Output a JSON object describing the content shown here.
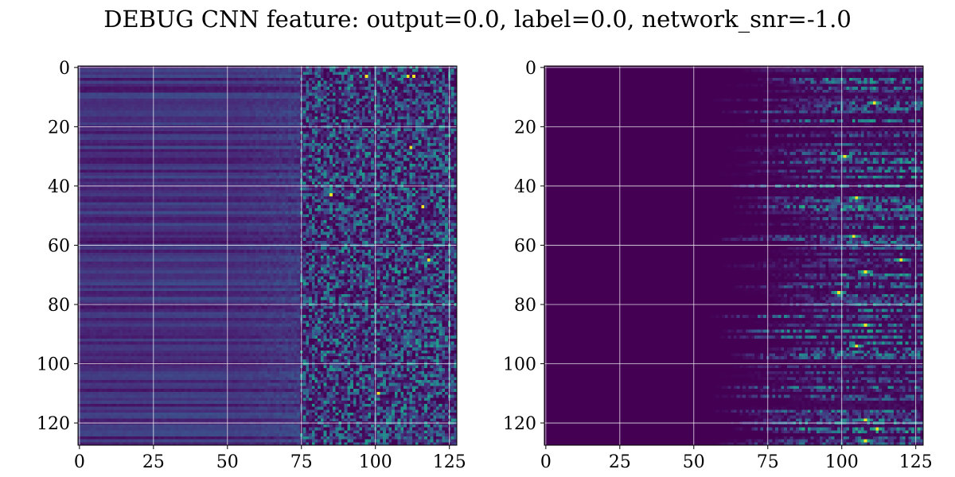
{
  "figure": {
    "title": "DEBUG CNN feature: output=0.0, label=0.0, network_snr=-1.0"
  },
  "chart_data": [
    {
      "type": "heatmap",
      "panel": "left",
      "rows": 128,
      "cols": 128,
      "xlim": [
        -0.5,
        127.5
      ],
      "ylim": [
        127.5,
        -0.5
      ],
      "xticks": [
        0,
        25,
        50,
        75,
        100,
        125
      ],
      "yticks": [
        0,
        20,
        40,
        60,
        80,
        100,
        120
      ],
      "xlabel": "",
      "ylabel": "",
      "grid": true,
      "colormap": "viridis",
      "description_values": {
        "baseline_cols_0_75": 0.22,
        "noise_cols_75_127": 0.3,
        "hot_spots": [
          [
            3,
            97
          ],
          [
            3,
            111
          ],
          [
            3,
            113
          ],
          [
            27,
            112
          ],
          [
            43,
            85
          ],
          [
            47,
            116
          ],
          [
            65,
            118
          ],
          [
            110,
            101
          ]
        ]
      }
    },
    {
      "type": "heatmap",
      "panel": "right",
      "rows": 128,
      "cols": 128,
      "xlim": [
        -0.5,
        127.5
      ],
      "ylim": [
        127.5,
        -0.5
      ],
      "xticks": [
        0,
        25,
        50,
        75,
        100,
        125
      ],
      "yticks": [
        0,
        20,
        40,
        60,
        80,
        100,
        120
      ],
      "xlabel": "",
      "ylabel": "",
      "grid": true,
      "colormap": "viridis",
      "description_values": {
        "dark_cols_0_50": 0.0,
        "activity_peak_col": 105,
        "hot_spots": [
          [
            12,
            111
          ],
          [
            30,
            101
          ],
          [
            44,
            105
          ],
          [
            57,
            104
          ],
          [
            65,
            120
          ],
          [
            69,
            108
          ],
          [
            76,
            99
          ],
          [
            87,
            108
          ],
          [
            94,
            105
          ],
          [
            119,
            108
          ],
          [
            122,
            112
          ],
          [
            126,
            108
          ]
        ]
      }
    }
  ],
  "colors": {
    "viridis_low": "#440154",
    "viridis_mid": "#21918c",
    "viridis_high": "#fde725",
    "grid": "#ffffff"
  }
}
